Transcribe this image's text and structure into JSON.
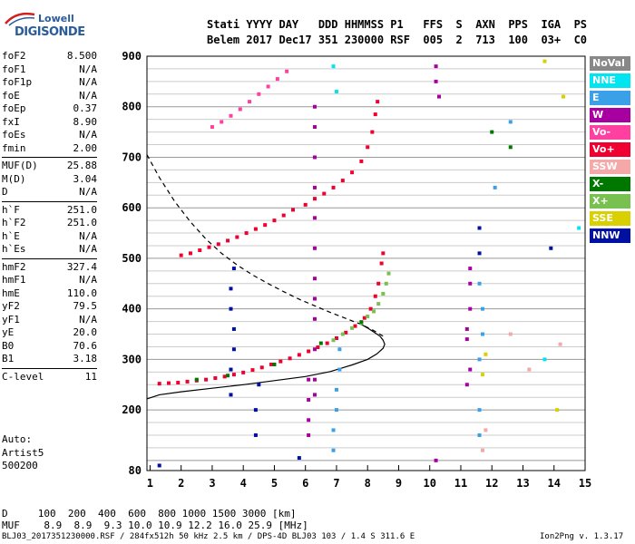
{
  "logo": {
    "line1": "Lowell",
    "line2": "DIGISONDE"
  },
  "header": {
    "labels": "Stati YYYY DAY   DDD HHMMSS P1   FFS  S  AXN  PPS  IGA  PS",
    "values": "Belem 2017 Dec17 351 230000 RSF  005  2  713  100  03+  C0"
  },
  "params": [
    {
      "name": "foF2",
      "value": "8.500"
    },
    {
      "name": "foF1",
      "value": "N/A"
    },
    {
      "name": "foF1p",
      "value": "N/A"
    },
    {
      "name": "foE",
      "value": "N/A"
    },
    {
      "name": "foEp",
      "value": "0.37"
    },
    {
      "name": "fxI",
      "value": "8.90"
    },
    {
      "name": "foEs",
      "value": "N/A"
    },
    {
      "name": "fmin",
      "value": "2.00"
    },
    {
      "name": "MUF(D)",
      "value": "25.88"
    },
    {
      "name": "M(D)",
      "value": "3.04"
    },
    {
      "name": "D",
      "value": "N/A"
    },
    {
      "name": "h`F",
      "value": "251.0"
    },
    {
      "name": "h`F2",
      "value": "251.0"
    },
    {
      "name": "h`E",
      "value": "N/A"
    },
    {
      "name": "h`Es",
      "value": "N/A"
    },
    {
      "name": "hmF2",
      "value": "327.4"
    },
    {
      "name": "hmF1",
      "value": "N/A"
    },
    {
      "name": "hmE",
      "value": "110.0"
    },
    {
      "name": "yF2",
      "value": "79.5"
    },
    {
      "name": "yF1",
      "value": "N/A"
    },
    {
      "name": "yE",
      "value": "20.0"
    },
    {
      "name": "B0",
      "value": "70.6"
    },
    {
      "name": "B1",
      "value": "3.18"
    },
    {
      "name": "C-level",
      "value": "11"
    }
  ],
  "auto": {
    "line1": "Auto:",
    "line2": "Artist5",
    "line3": "500200"
  },
  "legend": [
    {
      "label": "NoVal",
      "color": "#888888"
    },
    {
      "label": "NNE",
      "color": "#00e5f0"
    },
    {
      "label": "E",
      "color": "#3aa0e8"
    },
    {
      "label": "W",
      "color": "#a800a0"
    },
    {
      "label": "Vo-",
      "color": "#ff40a0"
    },
    {
      "label": "Vo+",
      "color": "#f00030"
    },
    {
      "label": "SSW",
      "color": "#f4a8a8"
    },
    {
      "label": "X-",
      "color": "#007800"
    },
    {
      "label": "X+",
      "color": "#78c050"
    },
    {
      "label": "SSE",
      "color": "#d8d000"
    },
    {
      "label": "NNW",
      "color": "#0010a0"
    }
  ],
  "footer": {
    "dist": "D     100  200  400  600  800 1000 1500 3000 [km]",
    "muf": "MUF    8.9  8.9  9.3 10.0 10.9 12.2 16.0 25.9 [MHz]",
    "info": "BLJ03_2017351230000.RSF / 284fx512h 50 kHz 2.5 km / DPS-4D BLJ03 103 / 1.4 S 311.6 E",
    "version": "Ion2Png v. 1.3.17"
  },
  "chart_data": {
    "type": "scatter",
    "x_ticks": [
      1,
      2,
      3,
      4,
      5,
      6,
      7,
      8,
      9,
      10,
      11,
      12,
      13,
      14,
      15
    ],
    "y_ticks": [
      100,
      200,
      300,
      400,
      500,
      600,
      700,
      800,
      900
    ],
    "y_tick_labels": [
      "",
      "200",
      "300",
      "400",
      "500",
      "600",
      "700",
      "800",
      "900"
    ],
    "y_bottom_label": "80",
    "xlim": [
      0.9,
      15
    ],
    "ylim": [
      80,
      900
    ],
    "y_grid_step": 25,
    "series": [
      {
        "color": "#f00030",
        "points": [
          [
            1.3,
            252
          ],
          [
            1.6,
            253
          ],
          [
            1.9,
            254
          ],
          [
            2.2,
            256
          ],
          [
            2.5,
            258
          ],
          [
            2.8,
            260
          ],
          [
            3.1,
            263
          ],
          [
            3.4,
            266
          ],
          [
            3.7,
            270
          ],
          [
            4.0,
            274
          ],
          [
            4.3,
            279
          ],
          [
            4.6,
            284
          ],
          [
            4.9,
            290
          ],
          [
            5.2,
            296
          ],
          [
            5.5,
            302
          ],
          [
            5.8,
            309
          ],
          [
            6.1,
            316
          ],
          [
            6.4,
            324
          ],
          [
            6.7,
            332
          ],
          [
            7.0,
            342
          ],
          [
            7.3,
            353
          ],
          [
            7.6,
            366
          ],
          [
            7.9,
            382
          ],
          [
            8.1,
            400
          ],
          [
            8.25,
            425
          ],
          [
            8.35,
            450
          ],
          [
            8.45,
            490
          ],
          [
            8.5,
            510
          ]
        ]
      },
      {
        "color": "#78c050",
        "points": [
          [
            6.9,
            338
          ],
          [
            7.2,
            350
          ],
          [
            7.5,
            362
          ],
          [
            7.8,
            372
          ],
          [
            8.0,
            385
          ],
          [
            8.2,
            395
          ],
          [
            8.35,
            410
          ],
          [
            8.5,
            430
          ],
          [
            8.6,
            450
          ],
          [
            8.68,
            470
          ]
        ]
      },
      {
        "color": "#f00030",
        "points": [
          [
            2.0,
            506
          ],
          [
            2.3,
            510
          ],
          [
            2.6,
            516
          ],
          [
            2.9,
            522
          ],
          [
            3.2,
            528
          ],
          [
            3.5,
            535
          ],
          [
            3.8,
            542
          ],
          [
            4.1,
            550
          ],
          [
            4.4,
            558
          ],
          [
            4.7,
            566
          ],
          [
            5.0,
            575
          ],
          [
            5.3,
            585
          ],
          [
            5.6,
            596
          ],
          [
            6.0,
            606
          ],
          [
            6.3,
            618
          ],
          [
            6.6,
            628
          ],
          [
            6.9,
            640
          ],
          [
            7.2,
            654
          ],
          [
            7.5,
            670
          ],
          [
            7.8,
            692
          ],
          [
            8.0,
            720
          ],
          [
            8.15,
            750
          ],
          [
            8.25,
            785
          ],
          [
            8.32,
            810
          ]
        ]
      },
      {
        "color": "#ff40a0",
        "points": [
          [
            3.0,
            760
          ],
          [
            3.3,
            770
          ],
          [
            3.6,
            782
          ],
          [
            3.9,
            795
          ],
          [
            4.2,
            810
          ],
          [
            4.5,
            825
          ],
          [
            4.8,
            840
          ],
          [
            5.1,
            855
          ],
          [
            5.4,
            870
          ]
        ]
      },
      {
        "color": "#a800a0",
        "points": [
          [
            6.3,
            230
          ],
          [
            6.3,
            260
          ],
          [
            6.3,
            320
          ],
          [
            6.3,
            380
          ],
          [
            6.3,
            420
          ],
          [
            6.3,
            460
          ],
          [
            6.3,
            520
          ],
          [
            6.3,
            580
          ],
          [
            6.3,
            640
          ],
          [
            6.3,
            700
          ],
          [
            6.3,
            760
          ],
          [
            6.3,
            800
          ],
          [
            6.1,
            150
          ],
          [
            6.1,
            180
          ],
          [
            6.1,
            220
          ],
          [
            6.1,
            260
          ],
          [
            11.2,
            340
          ],
          [
            11.2,
            360
          ],
          [
            11.3,
            400
          ],
          [
            11.3,
            450
          ],
          [
            11.3,
            480
          ],
          [
            11.2,
            250
          ],
          [
            11.3,
            280
          ],
          [
            10.2,
            880
          ],
          [
            10.2,
            850
          ],
          [
            10.3,
            820
          ],
          [
            10.2,
            100
          ]
        ]
      },
      {
        "color": "#3aa0e8",
        "points": [
          [
            6.9,
            120
          ],
          [
            6.9,
            160
          ],
          [
            7.0,
            200
          ],
          [
            7.0,
            240
          ],
          [
            7.1,
            280
          ],
          [
            7.1,
            320
          ],
          [
            11.6,
            150
          ],
          [
            11.6,
            200
          ],
          [
            11.6,
            300
          ],
          [
            11.7,
            350
          ],
          [
            11.7,
            400
          ],
          [
            11.6,
            450
          ],
          [
            12.1,
            640
          ],
          [
            12.6,
            770
          ]
        ]
      },
      {
        "color": "#0010a0",
        "points": [
          [
            3.6,
            230
          ],
          [
            3.6,
            280
          ],
          [
            3.7,
            320
          ],
          [
            3.7,
            360
          ],
          [
            3.6,
            400
          ],
          [
            3.6,
            440
          ],
          [
            3.7,
            480
          ],
          [
            4.4,
            150
          ],
          [
            4.4,
            200
          ],
          [
            4.5,
            250
          ],
          [
            11.6,
            510
          ],
          [
            11.6,
            560
          ],
          [
            13.9,
            520
          ],
          [
            1.3,
            90
          ],
          [
            5.8,
            105
          ]
        ]
      },
      {
        "color": "#007800",
        "points": [
          [
            2.5,
            260
          ],
          [
            3.5,
            268
          ],
          [
            5.0,
            290
          ],
          [
            6.5,
            332
          ],
          [
            7.8,
            374
          ],
          [
            12.0,
            750
          ],
          [
            12.6,
            720
          ]
        ]
      },
      {
        "color": "#d8d000",
        "points": [
          [
            11.7,
            270
          ],
          [
            11.8,
            310
          ],
          [
            13.7,
            890
          ],
          [
            14.3,
            820
          ],
          [
            14.1,
            200
          ]
        ]
      },
      {
        "color": "#f4a8a8",
        "points": [
          [
            11.7,
            120
          ],
          [
            11.8,
            160
          ],
          [
            12.6,
            350
          ],
          [
            13.2,
            280
          ],
          [
            14.2,
            330
          ]
        ]
      },
      {
        "color": "#00e5f0",
        "points": [
          [
            6.9,
            880
          ],
          [
            7.0,
            830
          ],
          [
            13.7,
            300
          ],
          [
            14.8,
            560
          ]
        ]
      }
    ],
    "curves": [
      {
        "style": "dashed",
        "points": [
          [
            0.9,
            705
          ],
          [
            1.3,
            660
          ],
          [
            1.8,
            612
          ],
          [
            2.3,
            572
          ],
          [
            2.8,
            538
          ],
          [
            3.3,
            510
          ],
          [
            3.8,
            487
          ],
          [
            4.3,
            467
          ],
          [
            4.8,
            450
          ],
          [
            5.3,
            434
          ],
          [
            5.8,
            419
          ],
          [
            6.3,
            406
          ],
          [
            6.8,
            393
          ],
          [
            7.3,
            381
          ],
          [
            7.8,
            369
          ],
          [
            8.2,
            357
          ],
          [
            8.5,
            346
          ]
        ]
      },
      {
        "style": "solid",
        "points": [
          [
            0.9,
            222
          ],
          [
            1.3,
            230
          ],
          [
            2.0,
            236
          ],
          [
            3.0,
            243
          ],
          [
            4.0,
            250
          ],
          [
            5.0,
            258
          ],
          [
            6.0,
            266
          ],
          [
            6.8,
            276
          ],
          [
            7.5,
            289
          ],
          [
            8.0,
            300
          ],
          [
            8.3,
            311
          ],
          [
            8.5,
            322
          ],
          [
            8.55,
            330
          ],
          [
            8.5,
            338
          ],
          [
            8.4,
            346
          ],
          [
            8.2,
            354
          ],
          [
            8.0,
            362
          ],
          [
            7.8,
            369
          ]
        ]
      }
    ]
  }
}
